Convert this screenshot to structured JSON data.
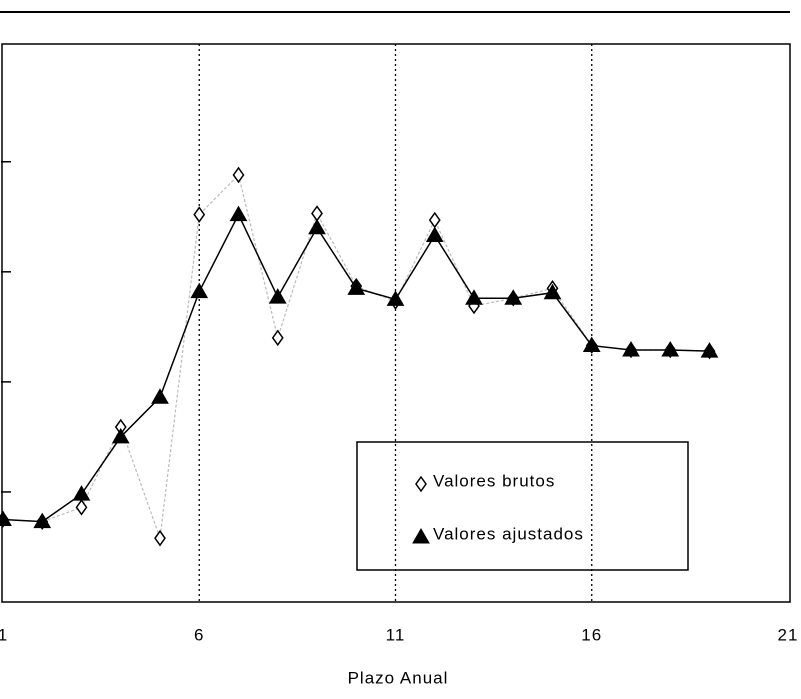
{
  "chart_data": {
    "type": "line",
    "xlabel": "Plazo Anual",
    "x": [
      1,
      2,
      3,
      4,
      5,
      6,
      7,
      8,
      9,
      10,
      11,
      12,
      13,
      14,
      15,
      16,
      17,
      18,
      19
    ],
    "series": [
      {
        "name": "Valores brutos",
        "color": "#000000",
        "line_color": "#bbbbbb",
        "marker": "diamond",
        "values": [
          0.75,
          0.73,
          0.86,
          1.59,
          0.58,
          3.52,
          3.88,
          2.4,
          3.53,
          2.87,
          2.73,
          3.47,
          2.69,
          2.76,
          2.85,
          2.33,
          2.29,
          2.29,
          2.28
        ]
      },
      {
        "name": "Valores ajustados",
        "color": "#000000",
        "line_color": "#000000",
        "marker": "triangle",
        "values": [
          0.75,
          0.73,
          0.98,
          1.5,
          1.86,
          2.82,
          3.52,
          2.77,
          3.4,
          2.85,
          2.75,
          3.33,
          2.76,
          2.76,
          2.81,
          2.33,
          2.29,
          2.29,
          2.28
        ]
      }
    ],
    "xlim": [
      1,
      21
    ],
    "xticks": [
      1,
      6,
      11,
      16,
      21
    ],
    "ylim": [
      0,
      5.07
    ],
    "yticks": [
      1,
      2,
      3,
      4
    ],
    "grid": true
  }
}
